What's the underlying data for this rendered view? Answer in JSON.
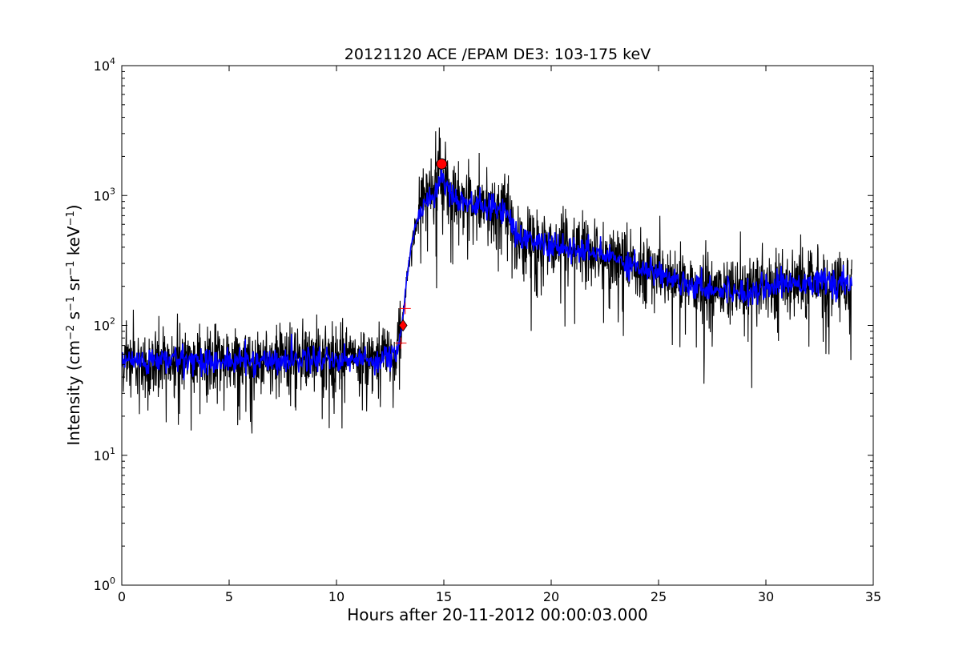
{
  "chart_data": {
    "type": "line",
    "title": "20121120 ACE /EPAM DE3: 103-175 keV",
    "xlabel": "Hours after 20-11-2012 00:00:03.000",
    "ylabel": "Intensity (cm",
    "ylabel_parts": [
      "Intensity (cm",
      "−2",
      " s",
      "−1",
      " sr",
      "−1",
      " keV",
      "−1",
      ")"
    ],
    "xlim": [
      0,
      35
    ],
    "ylim": [
      1,
      10000
    ],
    "yscale": "log",
    "grid": false,
    "xticks": [
      {
        "value": 0,
        "label": "0"
      },
      {
        "value": 5,
        "label": "5"
      },
      {
        "value": 10,
        "label": "10"
      },
      {
        "value": 15,
        "label": "15"
      },
      {
        "value": 20,
        "label": "20"
      },
      {
        "value": 25,
        "label": "25"
      },
      {
        "value": 30,
        "label": "30"
      },
      {
        "value": 35,
        "label": "35"
      }
    ],
    "yticks": [
      {
        "value": 1,
        "base": "10",
        "exp": "0"
      },
      {
        "value": 10,
        "base": "10",
        "exp": "1"
      },
      {
        "value": 100,
        "base": "10",
        "exp": "2"
      },
      {
        "value": 1000,
        "base": "10",
        "exp": "3"
      },
      {
        "value": 10000,
        "base": "10",
        "exp": "4"
      }
    ],
    "series": [
      {
        "color": "#000000",
        "style": "raw-noisy",
        "x": [
          0,
          1,
          2,
          3,
          4,
          5,
          6,
          7,
          8,
          9,
          10,
          11,
          12,
          12.8,
          13.0,
          13.1,
          13.3,
          13.5,
          13.7,
          14.0,
          14.3,
          14.6,
          14.9,
          15.2,
          15.6,
          16.0,
          16.5,
          17.0,
          17.5,
          18.0,
          18.3,
          18.5,
          19.0,
          19.5,
          20.0,
          21.0,
          22.0,
          23.0,
          24.0,
          25.0,
          26.0,
          27.0,
          28.0,
          29.0,
          30.0,
          31.0,
          32.0,
          33.0,
          34.0
        ],
        "y": [
          55,
          52,
          54,
          55,
          53,
          52,
          54,
          53,
          55,
          56,
          55,
          54,
          55,
          60,
          90,
          120,
          250,
          420,
          600,
          850,
          950,
          1050,
          1500,
          1100,
          950,
          900,
          850,
          800,
          780,
          780,
          500,
          480,
          460,
          430,
          400,
          380,
          360,
          330,
          290,
          250,
          220,
          200,
          185,
          180,
          200,
          210,
          220,
          210,
          200
        ]
      },
      {
        "color": "#0000ff",
        "style": "smoothed",
        "x": [
          0,
          1,
          2,
          3,
          4,
          5,
          6,
          7,
          8,
          9,
          10,
          11,
          12,
          12.8,
          13.0,
          13.1,
          13.3,
          13.5,
          13.7,
          14.0,
          14.3,
          14.6,
          14.9,
          15.2,
          15.6,
          16.0,
          16.5,
          17.0,
          17.5,
          18.0,
          18.3,
          18.5,
          19.0,
          19.5,
          20.0,
          21.0,
          22.0,
          23.0,
          24.0,
          25.0,
          26.0,
          27.0,
          28.0,
          29.0,
          30.0,
          31.0,
          32.0,
          33.0,
          34.0
        ],
        "y": [
          55,
          52,
          54,
          55,
          53,
          52,
          54,
          53,
          55,
          56,
          55,
          54,
          55,
          60,
          90,
          120,
          250,
          420,
          600,
          850,
          950,
          1050,
          1500,
          1100,
          950,
          900,
          850,
          800,
          780,
          780,
          500,
          480,
          460,
          430,
          400,
          380,
          360,
          330,
          290,
          250,
          220,
          200,
          185,
          180,
          200,
          210,
          220,
          210,
          200
        ]
      }
    ],
    "markers": [
      {
        "name": "onset",
        "shape": "diamond",
        "color": "#ff0000",
        "x": 13.1,
        "y": 100
      },
      {
        "name": "onset-upper",
        "shape": "plus",
        "color": "#ff0000",
        "x": 13.2,
        "y": 135
      },
      {
        "name": "onset-lower",
        "shape": "plus",
        "color": "#ff0000",
        "x": 13.0,
        "y": 73
      },
      {
        "name": "peak",
        "shape": "circle",
        "color": "#ff0000",
        "x": 14.9,
        "y": 1750
      }
    ]
  }
}
